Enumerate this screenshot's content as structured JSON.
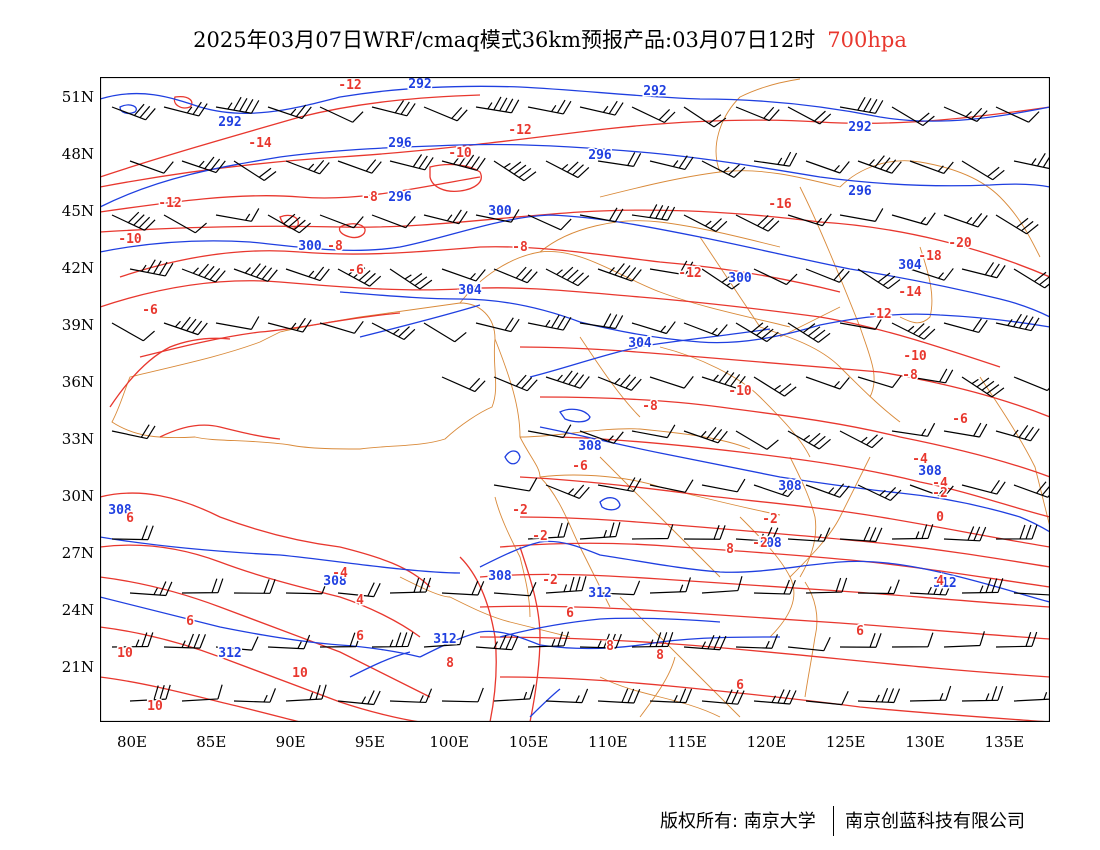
{
  "title": {
    "main": "2025年03月07日WRF/cmaq模式36km预报产品:03月07日12时",
    "level": "700hpa"
  },
  "colors": {
    "height_contour": "#1f3fe0",
    "temp_contour": "#e8372e",
    "border": "#d98a3a",
    "barb": "#000000",
    "level_text": "#e8372e"
  },
  "axes": {
    "lat_labels": [
      "51N",
      "48N",
      "45N",
      "42N",
      "39N",
      "36N",
      "33N",
      "30N",
      "27N",
      "24N",
      "21N"
    ],
    "lon_labels": [
      "80E",
      "85E",
      "90E",
      "95E",
      "100E",
      "105E",
      "110E",
      "115E",
      "120E",
      "125E",
      "130E",
      "135E"
    ]
  },
  "contour_labels": {
    "height": [
      "292",
      "292",
      "292",
      "292",
      "296",
      "296",
      "296",
      "296",
      "300",
      "300",
      "300",
      "304",
      "304",
      "304",
      "308",
      "308",
      "308",
      "308",
      "308",
      "308",
      "308",
      "312",
      "312",
      "312",
      "312"
    ],
    "temperature": [
      "-12",
      "-12",
      "-14",
      "-12",
      "-10",
      "-10",
      "-16",
      "-8",
      "-8",
      "-8",
      "-6",
      "-12",
      "-18",
      "-20",
      "-14",
      "-12",
      "-10",
      "-6",
      "-10",
      "-8",
      "-8",
      "-6",
      "-6",
      "-4",
      "-4",
      "-2",
      "-2",
      "0",
      "-2",
      "-2",
      "-2",
      "-2",
      "-4",
      "4",
      "4",
      "6",
      "6",
      "6",
      "6",
      "8",
      "8",
      "8",
      "6",
      "6",
      "8",
      "10",
      "10",
      "10"
    ]
  },
  "footer": {
    "left": "版权所有: 南京大学",
    "right": "南京创蓝科技有限公司"
  }
}
